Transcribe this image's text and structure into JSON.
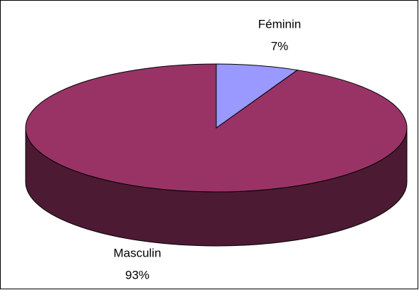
{
  "chart_data": {
    "type": "pie",
    "three_d": true,
    "categories": [
      "Féminin",
      "Masculin"
    ],
    "values": [
      7,
      93
    ],
    "value_labels": [
      "7%",
      "93%"
    ],
    "colors": [
      "#9999ff",
      "#993366"
    ]
  }
}
